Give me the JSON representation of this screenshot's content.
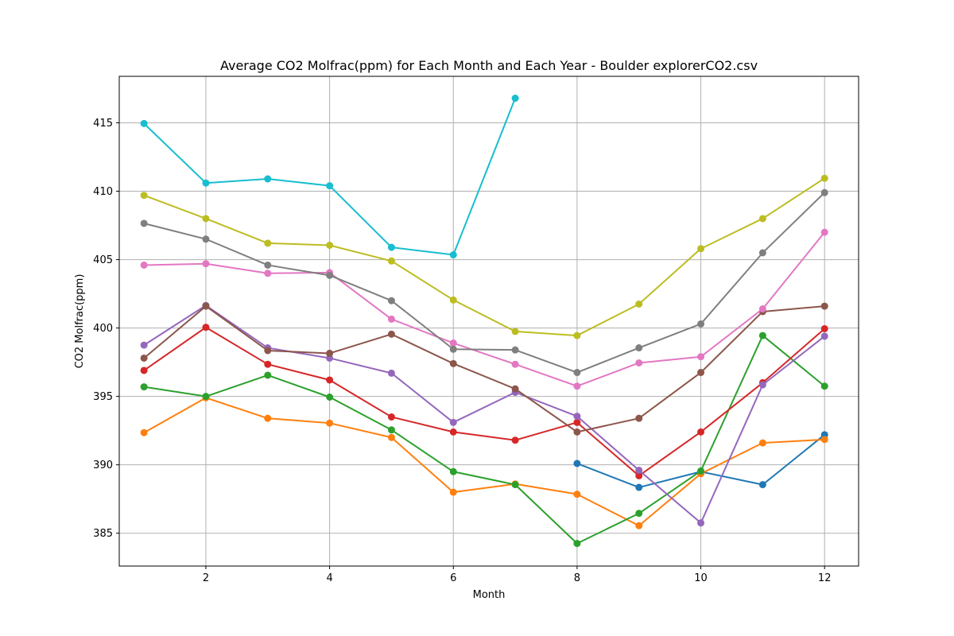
{
  "chart_data": {
    "type": "line",
    "title": "Average CO2 Molfrac(ppm) for Each Month and Each Year - Boulder explorerCO2.csv",
    "xlabel": "Month",
    "ylabel": "CO2 Molfrac(ppm)",
    "xlim": [
      0.6,
      12.55
    ],
    "ylim": [
      382.6,
      418.4
    ],
    "x_ticks": [
      2,
      4,
      6,
      8,
      10,
      12
    ],
    "y_ticks": [
      385,
      390,
      395,
      400,
      405,
      410,
      415
    ],
    "grid": true,
    "legend": "none",
    "series": [
      {
        "color": "#1f77b4",
        "x": [
          8,
          9,
          10,
          11,
          12
        ],
        "values": [
          390.1,
          388.35,
          389.5,
          388.55,
          392.2
        ]
      },
      {
        "color": "#ff7f0e",
        "x": [
          1,
          2,
          3,
          4,
          5,
          6,
          7,
          8,
          9,
          10,
          11,
          12
        ],
        "values": [
          392.35,
          394.9,
          393.4,
          393.05,
          392.0,
          388.0,
          388.6,
          387.85,
          385.55,
          389.35,
          391.6,
          391.85
        ]
      },
      {
        "color": "#2ca02c",
        "x": [
          1,
          2,
          3,
          4,
          5,
          6,
          7,
          8,
          9,
          10,
          11,
          12
        ],
        "values": [
          395.7,
          395.0,
          396.55,
          394.95,
          392.55,
          389.5,
          388.55,
          384.25,
          386.45,
          389.55,
          399.45,
          395.75
        ]
      },
      {
        "color": "#d62728",
        "x": [
          1,
          2,
          3,
          4,
          5,
          6,
          7,
          8,
          9,
          10,
          11,
          12
        ],
        "values": [
          396.9,
          400.05,
          397.35,
          396.2,
          393.5,
          392.4,
          391.8,
          393.1,
          389.2,
          392.4,
          396.0,
          399.95
        ]
      },
      {
        "color": "#9467bd",
        "x": [
          1,
          2,
          3,
          4,
          5,
          6,
          7,
          8,
          9,
          10,
          11,
          12
        ],
        "values": [
          398.75,
          401.65,
          398.55,
          397.8,
          396.7,
          393.1,
          395.3,
          393.55,
          389.6,
          385.75,
          395.85,
          399.4
        ]
      },
      {
        "color": "#8c564b",
        "x": [
          1,
          2,
          3,
          4,
          5,
          6,
          7,
          8,
          9,
          10,
          11,
          12
        ],
        "values": [
          397.8,
          401.6,
          398.35,
          398.15,
          399.55,
          397.4,
          395.55,
          392.4,
          393.4,
          396.75,
          401.2,
          401.6
        ]
      },
      {
        "color": "#e377c2",
        "x": [
          1,
          2,
          3,
          4,
          5,
          6,
          7,
          8,
          9,
          10,
          11,
          12
        ],
        "values": [
          404.6,
          404.7,
          404.0,
          404.05,
          400.65,
          398.9,
          397.35,
          395.75,
          397.45,
          397.9,
          401.4,
          407.0
        ]
      },
      {
        "color": "#7f7f7f",
        "x": [
          1,
          2,
          3,
          4,
          5,
          6,
          7,
          8,
          9,
          10,
          11,
          12
        ],
        "values": [
          407.65,
          406.5,
          404.6,
          403.85,
          402.0,
          398.45,
          398.4,
          396.75,
          398.55,
          400.3,
          405.5,
          409.9
        ]
      },
      {
        "color": "#bcbd22",
        "x": [
          1,
          2,
          3,
          4,
          5,
          6,
          7,
          8,
          9,
          10,
          11,
          12
        ],
        "values": [
          409.7,
          408.0,
          406.2,
          406.05,
          404.9,
          402.05,
          399.75,
          399.45,
          401.75,
          405.8,
          408.0,
          410.95
        ]
      },
      {
        "color": "#17becf",
        "x": [
          1,
          2,
          3,
          4,
          5,
          6,
          7
        ],
        "values": [
          414.95,
          410.6,
          410.9,
          410.4,
          405.9,
          405.35,
          416.8
        ]
      }
    ]
  }
}
